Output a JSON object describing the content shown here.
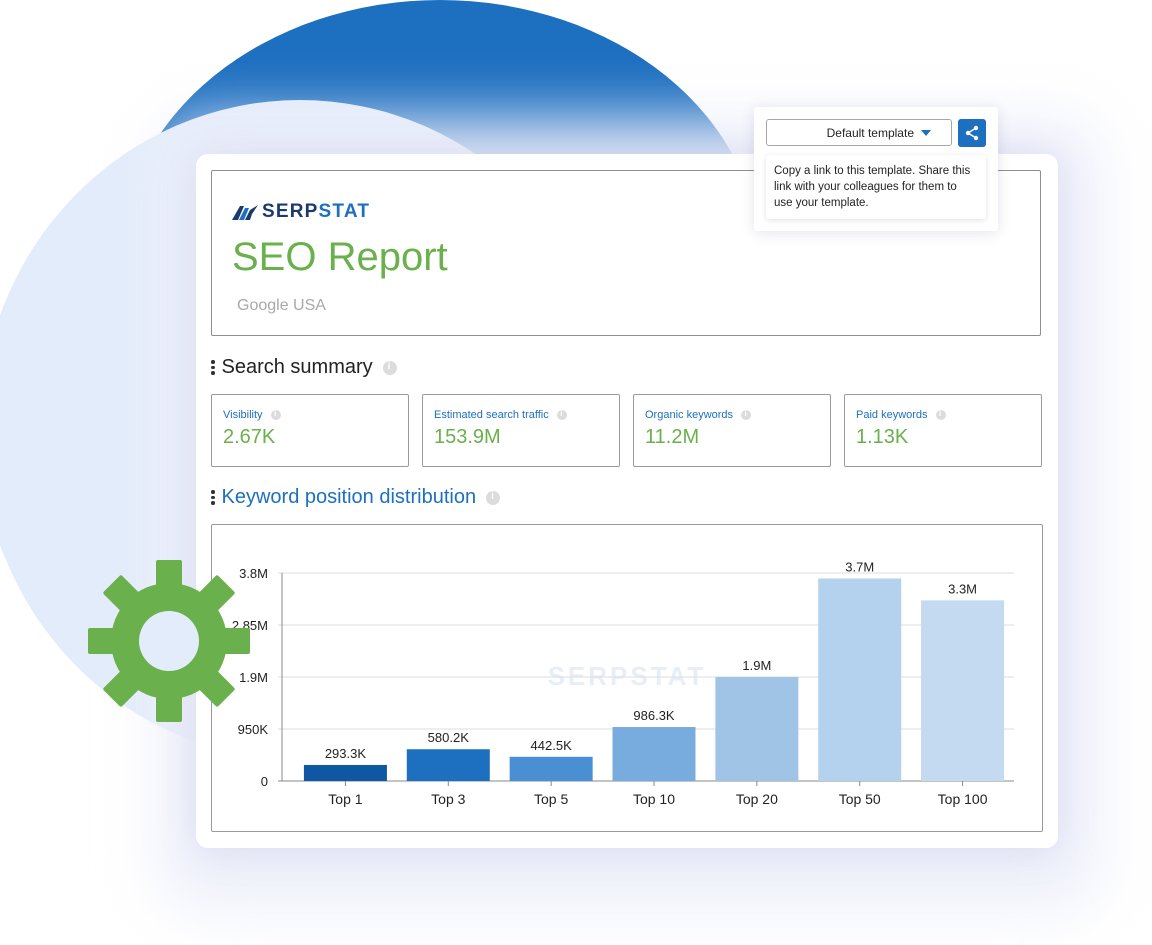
{
  "brand": {
    "logo_text_a": "SERP",
    "logo_text_b": "STAT",
    "watermark": "SERPSTAT"
  },
  "report": {
    "title": "SEO Report",
    "subtitle": "Google USA"
  },
  "template": {
    "selected": "Default template",
    "share_tooltip": "Copy a link to this template. Share this link with your colleagues for them to use your template."
  },
  "search_summary": {
    "title": "Search summary",
    "metrics": [
      {
        "label": "Visibility",
        "value": "2.67K"
      },
      {
        "label": "Estimated search traffic",
        "value": "153.9M"
      },
      {
        "label": "Organic keywords",
        "value": "11.2M"
      },
      {
        "label": "Paid keywords",
        "value": "1.13K"
      }
    ]
  },
  "distribution": {
    "title": "Keyword position distribution"
  },
  "colors": {
    "accent_blue": "#1d6fc0",
    "accent_green": "#6ab04c"
  },
  "chart_data": {
    "type": "bar",
    "categories": [
      "Top 1",
      "Top 3",
      "Top 5",
      "Top 10",
      "Top 20",
      "Top 50",
      "Top 100"
    ],
    "values": [
      293300,
      580200,
      442500,
      986300,
      1900000,
      3700000,
      3300000
    ],
    "value_labels": [
      "293.3K",
      "580.2K",
      "442.5K",
      "986.3K",
      "1.9M",
      "3.7M",
      "3.3M"
    ],
    "bar_colors": [
      "#0f56a3",
      "#1d6fc0",
      "#4a8fd2",
      "#78acde",
      "#a0c4e6",
      "#b4d1ee",
      "#c3daf1"
    ],
    "y_ticks": [
      0,
      950000,
      1900000,
      2850000,
      3800000
    ],
    "y_tick_labels": [
      "0",
      "950K",
      "1.9M",
      "2.85M",
      "3.8M"
    ],
    "ylim": [
      0,
      3800000
    ],
    "grid": true
  }
}
